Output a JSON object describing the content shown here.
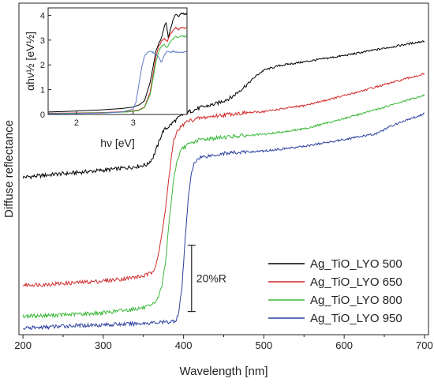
{
  "chart_data": [
    {
      "type": "line",
      "title": "",
      "xlabel": "Wavelength [nm]",
      "ylabel": "Diffuse reflectance",
      "xlim": [
        195,
        705
      ],
      "ylim": [
        0,
        100
      ],
      "y_ticks_shown": false,
      "xticks": [
        200,
        300,
        400,
        500,
        600,
        700
      ],
      "grid": false,
      "legend_position": "bottom-right",
      "scale_bar_label": "20%R",
      "scale_bar_span": 20,
      "scale_bar_x": 410,
      "scale_bar_y_center": 17,
      "series": [
        {
          "name": "Ag_TiO_LYO 500",
          "color": "#000000",
          "x": [
            200,
            220,
            240,
            260,
            280,
            300,
            320,
            340,
            355,
            362,
            368,
            372,
            375,
            380,
            385,
            390,
            395,
            400,
            410,
            420,
            440,
            460,
            480,
            490,
            500,
            520,
            550,
            600,
            650,
            700
          ],
          "y": [
            47.5,
            47.9,
            48.4,
            48.7,
            49.2,
            49.6,
            50.1,
            50.7,
            51.3,
            53.5,
            57.2,
            60.0,
            61.6,
            62.5,
            63.6,
            64.7,
            65.6,
            66.5,
            67.5,
            68.4,
            69.6,
            71.6,
            75.7,
            78.0,
            79.8,
            81.2,
            82.3,
            84.2,
            86.4,
            88.6
          ]
        },
        {
          "name": "Ag_TiO_LYO 650",
          "color": "#d22a2a",
          "x": [
            200,
            230,
            260,
            300,
            330,
            350,
            360,
            365,
            370,
            375,
            380,
            385,
            388,
            392,
            396,
            400,
            405,
            420,
            440,
            460,
            500,
            550,
            600,
            650,
            700
          ],
          "y": [
            15.0,
            15.2,
            15.6,
            16.2,
            17.0,
            17.7,
            18.6,
            20.8,
            25.7,
            33.4,
            43.5,
            53.9,
            58.6,
            61.4,
            62.5,
            63.4,
            64.4,
            65.3,
            66.0,
            66.6,
            67.3,
            69.1,
            72.1,
            75.4,
            78.7
          ]
        },
        {
          "name": "Ag_TiO_LYO 800",
          "color": "#3ab83a",
          "x": [
            200,
            230,
            260,
            300,
            330,
            350,
            360,
            368,
            373,
            378,
            383,
            388,
            392,
            396,
            400,
            405,
            410,
            420,
            440,
            460,
            500,
            550,
            600,
            650,
            700
          ],
          "y": [
            5.6,
            5.8,
            6.1,
            6.6,
            7.5,
            8.1,
            8.6,
            10.9,
            14.8,
            23.0,
            36.4,
            47.6,
            52.4,
            55.1,
            56.4,
            57.2,
            57.8,
            58.8,
            59.3,
            59.8,
            60.4,
            62.1,
            65.2,
            68.6,
            72.3
          ]
        },
        {
          "name": "Ag_TiO_LYO 950",
          "color": "#2a3f9e",
          "x": [
            200,
            230,
            260,
            300,
            330,
            360,
            380,
            390,
            394,
            398,
            402,
            406,
            410,
            413,
            416,
            420,
            430,
            450,
            500,
            550,
            600,
            640,
            660,
            680,
            700
          ],
          "y": [
            1.9,
            2.3,
            2.7,
            3.0,
            3.2,
            3.6,
            3.8,
            4.2,
            6.6,
            14.3,
            28.6,
            42.0,
            48.7,
            51.4,
            52.6,
            53.5,
            53.9,
            54.7,
            55.4,
            56.8,
            58.9,
            60.6,
            63.1,
            64.9,
            66.7
          ]
        }
      ]
    },
    {
      "type": "line",
      "title": "",
      "xlabel": "hν [eV]",
      "ylabel": "αhν½ [eV½]",
      "xlim": [
        1.5,
        3.95
      ],
      "ylim": [
        0,
        4.3
      ],
      "xticks": [
        2,
        3
      ],
      "yticks": [
        0,
        1,
        2,
        3,
        4
      ],
      "grid": false,
      "series": [
        {
          "color": "#000000",
          "x": [
            1.5,
            1.8,
            2.0,
            2.4,
            2.8,
            3.0,
            3.1,
            3.2,
            3.3,
            3.35,
            3.4,
            3.45,
            3.5,
            3.55,
            3.58,
            3.62,
            3.66,
            3.7,
            3.75,
            3.8,
            3.85,
            3.9
          ],
          "y": [
            0.1,
            0.12,
            0.14,
            0.18,
            0.24,
            0.3,
            0.38,
            0.55,
            1.3,
            1.9,
            2.55,
            2.85,
            3.1,
            3.55,
            3.72,
            3.1,
            3.45,
            3.8,
            4.05,
            3.95,
            4.1,
            4.05
          ]
        },
        {
          "color": "#d22a2a",
          "x": [
            1.5,
            2.0,
            2.5,
            2.9,
            3.1,
            3.2,
            3.3,
            3.35,
            3.4,
            3.45,
            3.5,
            3.55,
            3.6,
            3.65,
            3.7,
            3.75,
            3.8,
            3.85,
            3.9
          ],
          "y": [
            0.05,
            0.06,
            0.08,
            0.12,
            0.18,
            0.3,
            0.9,
            1.6,
            2.3,
            2.75,
            2.95,
            3.05,
            2.95,
            3.2,
            3.38,
            3.5,
            3.42,
            3.52,
            3.48
          ]
        },
        {
          "color": "#3ab83a",
          "x": [
            1.5,
            2.0,
            2.5,
            2.9,
            3.1,
            3.2,
            3.3,
            3.35,
            3.4,
            3.45,
            3.5,
            3.55,
            3.6,
            3.65,
            3.7,
            3.75,
            3.8,
            3.85,
            3.9
          ],
          "y": [
            0.04,
            0.05,
            0.07,
            0.1,
            0.16,
            0.28,
            0.8,
            1.45,
            2.1,
            2.55,
            2.75,
            2.82,
            2.7,
            2.9,
            3.05,
            3.15,
            3.1,
            3.18,
            3.15
          ]
        },
        {
          "color": "#5e7cc8",
          "x": [
            1.5,
            2.0,
            2.5,
            2.8,
            3.0,
            3.05,
            3.1,
            3.15,
            3.2,
            3.25,
            3.3,
            3.35,
            3.4,
            3.45,
            3.5,
            3.55,
            3.6,
            3.65,
            3.7,
            3.8,
            3.9
          ],
          "y": [
            0.03,
            0.04,
            0.06,
            0.1,
            0.22,
            0.5,
            1.2,
            1.9,
            2.35,
            2.5,
            2.55,
            2.5,
            2.45,
            2.3,
            2.1,
            2.4,
            2.55,
            2.5,
            2.55,
            2.5,
            2.52
          ]
        }
      ]
    }
  ]
}
